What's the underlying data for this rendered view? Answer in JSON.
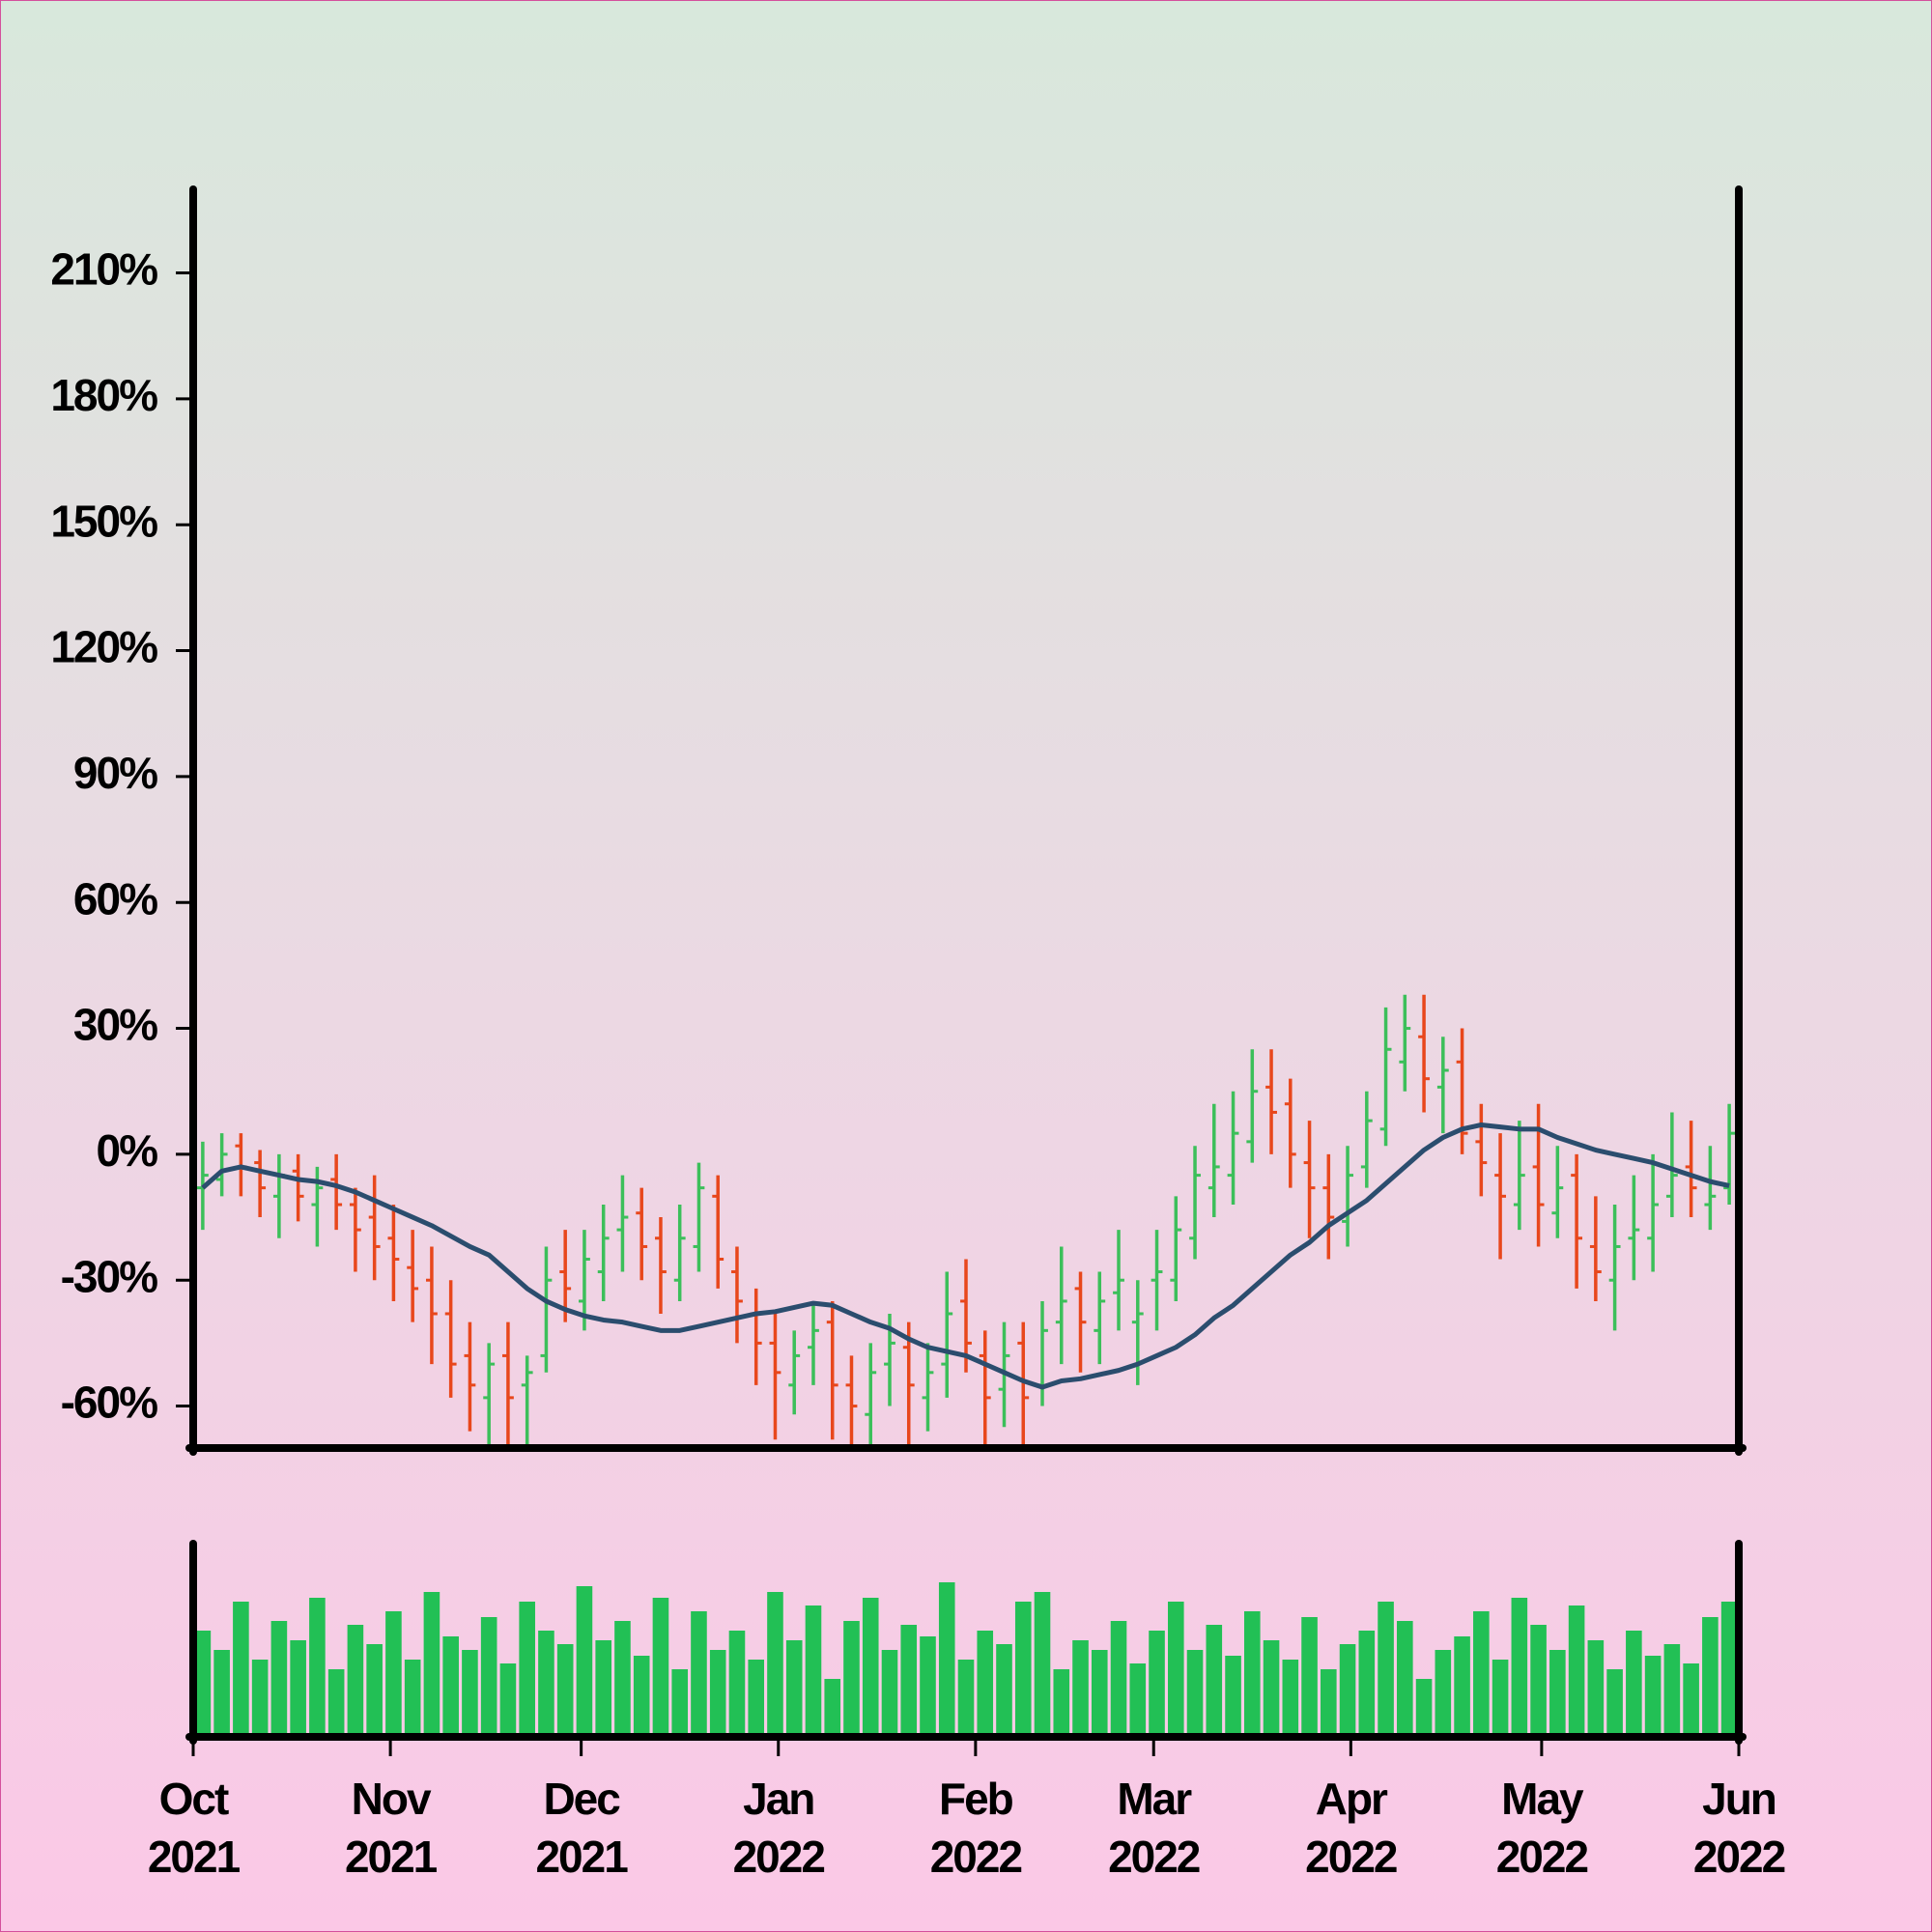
{
  "chart_data": {
    "type": "ohlc",
    "xlim": [
      "2021-10",
      "2022-06"
    ],
    "xticks": [
      {
        "value": "2021-10",
        "label": "Oct 2021"
      },
      {
        "value": "2021-11",
        "label": "Nov 2021"
      },
      {
        "value": "2021-12",
        "label": "Dec 2021"
      },
      {
        "value": "2022-01",
        "label": "Jan 2022"
      },
      {
        "value": "2022-02",
        "label": "Feb 2022"
      },
      {
        "value": "2022-03",
        "label": "Mar 2022"
      },
      {
        "value": "2022-04",
        "label": "Apr 2022"
      },
      {
        "value": "2022-05",
        "label": "May 2022"
      },
      {
        "value": "2022-06",
        "label": "Jun 2022"
      }
    ],
    "ylim": [
      -70,
      229
    ],
    "yticks": [
      {
        "value": -60,
        "label": "-60%"
      },
      {
        "value": -30,
        "label": "-30%"
      },
      {
        "value": 0,
        "label": "0%"
      },
      {
        "value": 30,
        "label": "30%"
      },
      {
        "value": 60,
        "label": "60%"
      },
      {
        "value": 90,
        "label": "90%"
      },
      {
        "value": 120,
        "label": "120%"
      },
      {
        "value": 150,
        "label": "150%"
      },
      {
        "value": 180,
        "label": "180%"
      },
      {
        "value": 210,
        "label": "210%"
      }
    ],
    "up_color": "#3cbf5a",
    "down_color": "#e8471c",
    "open": [
      -8,
      -6,
      2,
      -2,
      -10,
      -4,
      -12,
      -6,
      -12,
      -15,
      -20,
      -27,
      -30,
      -38,
      -48,
      -58,
      -48,
      -55,
      -48,
      -28,
      -35,
      -28,
      -18,
      -14,
      -20,
      -30,
      -22,
      -10,
      -28,
      -38,
      -45,
      -55,
      -46,
      -40,
      -55,
      -62,
      -50,
      -46,
      -58,
      -50,
      -35,
      -48,
      -56,
      -45,
      -55,
      -40,
      -32,
      -42,
      -33,
      -40,
      -30,
      -30,
      -20,
      -8,
      -5,
      3,
      16,
      12,
      -2,
      -8,
      -16,
      -3,
      6,
      22,
      28,
      16,
      22,
      3,
      -5,
      -12,
      -3,
      -14,
      -5,
      -22,
      -30,
      -20,
      -20,
      -10,
      -3,
      -12,
      -8
    ],
    "high": [
      3,
      5,
      5,
      1,
      0,
      0,
      -3,
      0,
      -8,
      -5,
      -12,
      -18,
      -22,
      -30,
      -40,
      -45,
      -40,
      -48,
      -22,
      -18,
      -18,
      -12,
      -5,
      -8,
      -15,
      -12,
      -2,
      -5,
      -22,
      -32,
      -38,
      -42,
      -35,
      -35,
      -48,
      -45,
      -38,
      -40,
      -45,
      -28,
      -25,
      -42,
      -40,
      -40,
      -35,
      -22,
      -28,
      -28,
      -18,
      -30,
      -18,
      -10,
      2,
      12,
      15,
      25,
      25,
      18,
      8,
      0,
      2,
      15,
      35,
      38,
      38,
      28,
      30,
      12,
      5,
      8,
      12,
      2,
      0,
      -10,
      -12,
      -5,
      0,
      10,
      8,
      2,
      12
    ],
    "low": [
      -18,
      -10,
      -10,
      -15,
      -20,
      -16,
      -22,
      -18,
      -28,
      -30,
      -35,
      -40,
      -50,
      -58,
      -66,
      -72,
      -72,
      -75,
      -52,
      -40,
      -42,
      -35,
      -28,
      -30,
      -38,
      -35,
      -28,
      -32,
      -45,
      -55,
      -68,
      -62,
      -55,
      -68,
      -72,
      -72,
      -60,
      -70,
      -66,
      -58,
      -52,
      -72,
      -65,
      -72,
      -60,
      -50,
      -52,
      -50,
      -42,
      -55,
      -42,
      -35,
      -25,
      -15,
      -12,
      -2,
      0,
      -8,
      -20,
      -25,
      -22,
      -8,
      2,
      15,
      10,
      5,
      0,
      -10,
      -25,
      -18,
      -22,
      -20,
      -32,
      -35,
      -42,
      -30,
      -28,
      -15,
      -15,
      -18,
      -12
    ],
    "close": [
      -5,
      0,
      -3,
      -8,
      -5,
      -10,
      -8,
      -12,
      -18,
      -22,
      -25,
      -32,
      -38,
      -50,
      -55,
      -50,
      -58,
      -52,
      -30,
      -32,
      -25,
      -20,
      -15,
      -22,
      -28,
      -20,
      -8,
      -25,
      -35,
      -45,
      -52,
      -48,
      -42,
      -55,
      -60,
      -52,
      -45,
      -55,
      -52,
      -38,
      -45,
      -58,
      -48,
      -58,
      -42,
      -35,
      -40,
      -35,
      -30,
      -38,
      -28,
      -18,
      -5,
      -3,
      5,
      15,
      10,
      0,
      -8,
      -15,
      -5,
      8,
      25,
      30,
      18,
      20,
      5,
      -2,
      -10,
      -5,
      -12,
      -8,
      -20,
      -28,
      -22,
      -18,
      -12,
      -5,
      -8,
      -10,
      5
    ],
    "ma": {
      "color": "#2b4d6e",
      "values": [
        -8,
        -4,
        -3,
        -4,
        -5,
        -6,
        -6.5,
        -7.5,
        -9,
        -11,
        -13,
        -15,
        -17,
        -19.5,
        -22,
        -24,
        -28,
        -32,
        -35,
        -37,
        -38.5,
        -39.5,
        -40,
        -41,
        -42,
        -42,
        -41,
        -40,
        -39,
        -38,
        -37.5,
        -36.5,
        -35.5,
        -36,
        -38,
        -40,
        -41.5,
        -44,
        -46,
        -47,
        -48,
        -50,
        -52,
        -54,
        -55.5,
        -54,
        -53.5,
        -52.5,
        -51.5,
        -50,
        -48,
        -46,
        -43,
        -39,
        -36,
        -32,
        -28,
        -24,
        -21,
        -17,
        -14,
        -11,
        -7,
        -3,
        1,
        4,
        6,
        7,
        6.5,
        6,
        6,
        4,
        2.5,
        1,
        0,
        -1,
        -2,
        -3.5,
        -5,
        -6.5,
        -7.5
      ]
    },
    "volume": {
      "color": "#22c055",
      "ylim": [
        0,
        100
      ],
      "values": [
        55,
        45,
        70,
        40,
        60,
        50,
        72,
        35,
        58,
        48,
        65,
        40,
        75,
        52,
        45,
        62,
        38,
        70,
        55,
        48,
        78,
        50,
        60,
        42,
        72,
        35,
        65,
        45,
        55,
        40,
        75,
        50,
        68,
        30,
        60,
        72,
        45,
        58,
        52,
        80,
        40,
        55,
        48,
        70,
        75,
        35,
        50,
        45,
        60,
        38,
        55,
        70,
        45,
        58,
        42,
        65,
        50,
        40,
        62,
        35,
        48,
        55,
        70,
        60,
        30,
        45,
        52,
        65,
        40,
        72,
        58,
        45,
        68,
        50,
        35,
        55,
        42,
        48,
        38,
        62,
        70
      ]
    }
  }
}
